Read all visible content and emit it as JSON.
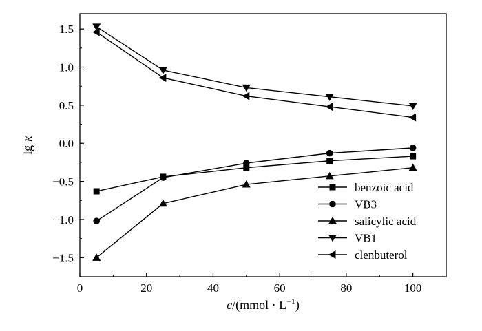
{
  "chart_data": {
    "type": "line",
    "xlabel": "c/(mmol · L⁻¹)",
    "xlabel_parts": {
      "var": "c",
      "rest": "/(mmol · L",
      "sup": "−1",
      "close": ")"
    },
    "ylabel": "lg κ",
    "ylabel_parts": {
      "lg": "lg",
      "kappa": "κ"
    },
    "xlim": [
      0,
      110
    ],
    "ylim": [
      -1.75,
      1.7
    ],
    "xticks": [
      0,
      20,
      40,
      60,
      80,
      100
    ],
    "xtick_labels": [
      "0",
      "20",
      "40",
      "60",
      "80",
      "100"
    ],
    "yticks": [
      -1.5,
      -1.0,
      -0.5,
      0.0,
      0.5,
      1.0,
      1.5
    ],
    "ytick_labels": [
      "−1.5",
      "−1.0",
      "−0.5",
      "0.0",
      "0.5",
      "1.0",
      "1.5"
    ],
    "grid": false,
    "legend_position": "bottom-right",
    "x": [
      5,
      25,
      50,
      75,
      100
    ],
    "series": [
      {
        "name": "benzoic acid",
        "marker": "square",
        "values": [
          -0.63,
          -0.44,
          -0.32,
          -0.23,
          -0.17
        ]
      },
      {
        "name": "VB3",
        "marker": "circle",
        "values": [
          -1.02,
          -0.45,
          -0.26,
          -0.13,
          -0.06
        ]
      },
      {
        "name": "salicylic acid",
        "marker": "triangle-up",
        "values": [
          -1.5,
          -0.79,
          -0.54,
          -0.43,
          -0.32
        ]
      },
      {
        "name": "VB1",
        "marker": "triangle-down",
        "values": [
          1.53,
          0.96,
          0.73,
          0.61,
          0.49
        ]
      },
      {
        "name": "clenbuterol",
        "marker": "triangle-left",
        "values": [
          1.46,
          0.86,
          0.62,
          0.48,
          0.34
        ]
      }
    ],
    "line_color": "#000000"
  }
}
